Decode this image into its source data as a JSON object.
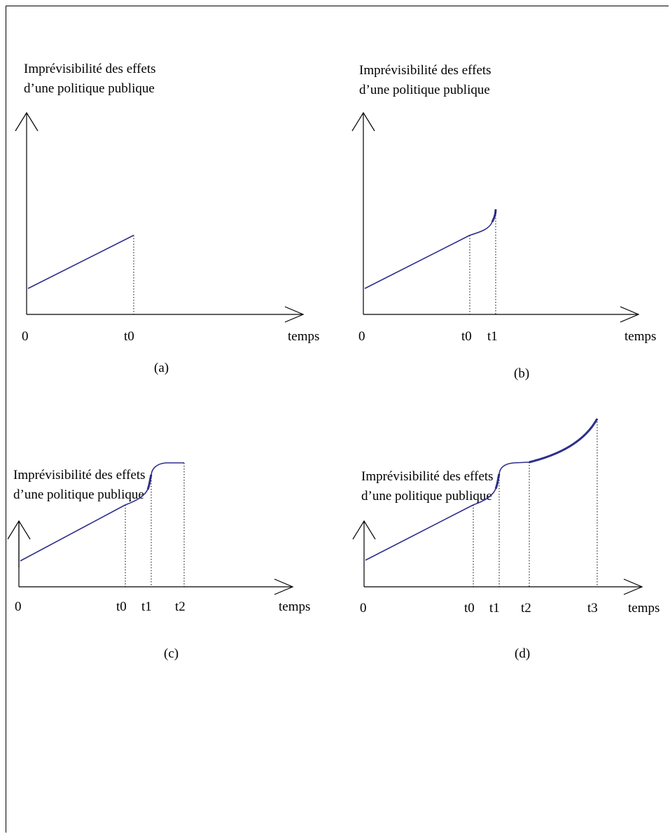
{
  "panels": [
    {
      "id": "a",
      "ylabel_line1": "Imprévisibilité des effets",
      "ylabel_line2": "d’une politique publique",
      "xlabel": "temps",
      "origin_label": "0",
      "ticks": [
        "t0"
      ],
      "caption": "(a)"
    },
    {
      "id": "b",
      "ylabel_line1": "Imprévisibilité des effets",
      "ylabel_line2": "d’une politique publique",
      "xlabel": "temps",
      "origin_label": "0",
      "ticks": [
        "t0",
        "t1"
      ],
      "caption": "(b)"
    },
    {
      "id": "c",
      "ylabel_line1": "Imprévisibilité des effets",
      "ylabel_line2": "d’une politique publique",
      "xlabel": "temps",
      "origin_label": "0",
      "ticks": [
        "t0",
        "t1",
        "t2"
      ],
      "caption": "(c)"
    },
    {
      "id": "d",
      "ylabel_line1": "Imprévisibilité des effets",
      "ylabel_line2": "d’une politique publique",
      "xlabel": "temps",
      "origin_label": "0",
      "ticks": [
        "t0",
        "t1",
        "t2",
        "t3"
      ],
      "caption": "(d)"
    }
  ],
  "colors": {
    "curve": "#2e2e8c",
    "axis": "#000000"
  }
}
